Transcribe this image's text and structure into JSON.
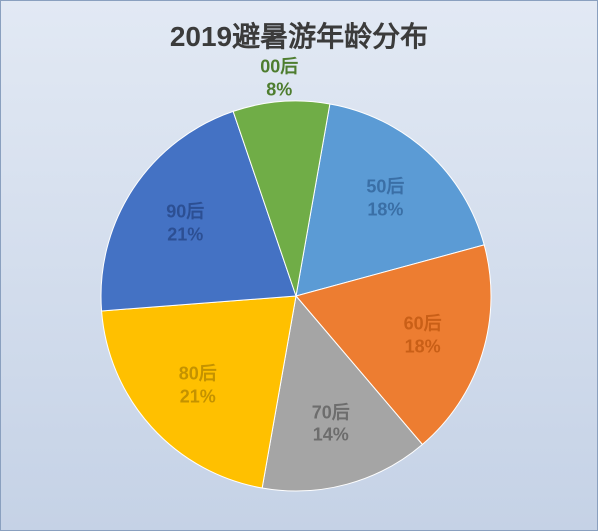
{
  "chart": {
    "type": "pie",
    "title": "2019避暑游年龄分布",
    "title_fontsize": 28,
    "title_color": "#3b3b3b",
    "label_fontsize": 18,
    "background": {
      "from": "#e2e9f4",
      "to": "#c5d2e6"
    },
    "plot_border_color": "#8aa0bf",
    "aspect_w": 598,
    "aspect_h": 531,
    "radius": 195,
    "start_angle_deg": 10,
    "slices": [
      {
        "name": "50后",
        "value": 18,
        "color": "#5b9bd5",
        "label_color": "#3a6fa6"
      },
      {
        "name": "60后",
        "value": 18,
        "color": "#ed7d31",
        "label_color": "#c95f17"
      },
      {
        "name": "70后",
        "value": 14,
        "color": "#a5a5a5",
        "label_color": "#6d6d6d"
      },
      {
        "name": "80后",
        "value": 21,
        "color": "#ffc000",
        "label_color": "#c49200"
      },
      {
        "name": "90后",
        "value": 21,
        "color": "#4472c4",
        "label_color": "#2c4f93"
      },
      {
        "name": "00后",
        "value": 8,
        "color": "#70ad47",
        "label_color": "#4e7d2f"
      }
    ],
    "label_radius_factor": 0.68,
    "label_outside_threshold": 10,
    "label_outside_factor": 1.12
  }
}
